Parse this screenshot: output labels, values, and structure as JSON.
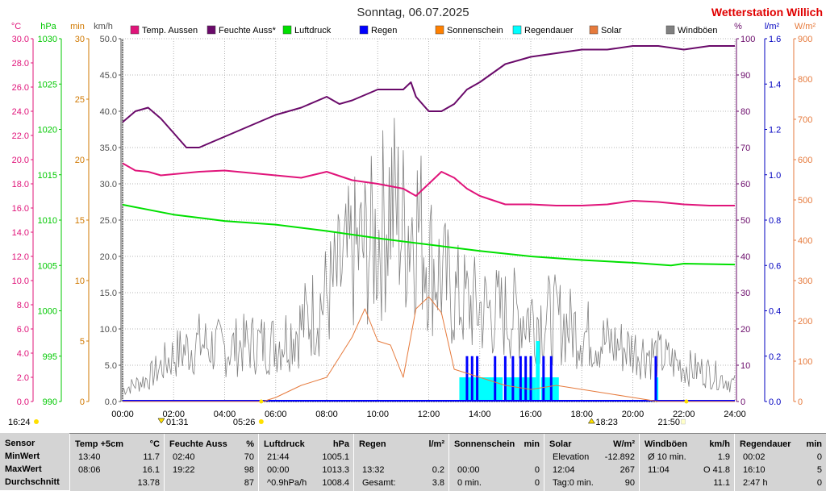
{
  "header": {
    "title": "Sonntag, 06.07.2025",
    "station": "Wetterstation Willich"
  },
  "axes": {
    "left_units": [
      "°C",
      "hPa",
      "min",
      "km/h"
    ],
    "right_units": [
      "%",
      "l/m²",
      "W/m²"
    ],
    "temp_ticks": [
      "30.0",
      "28.0",
      "26.0",
      "24.0",
      "22.0",
      "20.0",
      "18.0",
      "16.0",
      "14.0",
      "12.0",
      "10.0",
      "8.0",
      "6.0",
      "4.0",
      "2.0",
      "0.0"
    ],
    "hpa_ticks": [
      "1030",
      "1025",
      "1020",
      "1015",
      "1010",
      "1005",
      "1000",
      "995",
      "990"
    ],
    "min_ticks": [
      "30",
      "25",
      "20",
      "15",
      "10",
      "5",
      "0"
    ],
    "kmh_ticks": [
      "50.0",
      "45.0",
      "40.0",
      "35.0",
      "30.0",
      "25.0",
      "20.0",
      "15.0",
      "10.0",
      "5.0",
      "0.0"
    ],
    "pct_ticks": [
      "100",
      "90",
      "80",
      "70",
      "60",
      "50",
      "40",
      "30",
      "20",
      "10",
      "0"
    ],
    "rain_ticks": [
      "1.6",
      "1.4",
      "1.2",
      "1.0",
      "0.8",
      "0.6",
      "0.4",
      "0.2",
      "0.0"
    ],
    "solar_ticks": [
      "900",
      "800",
      "700",
      "600",
      "500",
      "400",
      "300",
      "200",
      "100",
      "0"
    ],
    "time_ticks": [
      "00:00",
      "02:00",
      "04:00",
      "06:00",
      "08:00",
      "10:00",
      "12:00",
      "14:00",
      "16:00",
      "18:00",
      "20:00",
      "22:00",
      "24:00"
    ]
  },
  "sun": {
    "moonset_label": "16:24",
    "moonset_time": 0.0,
    "sunrise_nautical": "01:31",
    "sunrise": "05:26",
    "sunset": "18:23",
    "dusk": "21:50"
  },
  "colors": {
    "temp": "#e0147a",
    "humidity": "#6a0a6a",
    "pressure": "#00e000",
    "rain": "#0000ff",
    "sunshine": "#ff8000",
    "rainduration": "#00ffff",
    "solar": "#e67a3c",
    "gust": "#808080"
  },
  "chart_data": {
    "type": "line",
    "title": "Sonntag, 06.07.2025",
    "xlabel": "",
    "x_range": [
      "00:00",
      "24:00"
    ],
    "legend": [
      "Temp. Aussen",
      "Feuchte Auss*",
      "Luftdruck",
      "Regen",
      "Sonnenschein",
      "Regendauer",
      "Solar",
      "Windböen"
    ],
    "series": [
      {
        "name": "Temp. Aussen",
        "unit": "°C",
        "ylim": [
          0,
          30
        ],
        "hours": [
          0,
          0.5,
          1,
          1.5,
          2,
          3,
          4,
          5,
          6,
          7,
          8,
          9,
          10,
          10.5,
          11,
          11.5,
          12,
          12.5,
          13,
          13.5,
          14,
          15,
          16,
          17,
          18,
          19,
          20,
          21,
          22,
          23,
          24
        ],
        "values": [
          19.7,
          19.1,
          19.0,
          18.7,
          18.8,
          19.0,
          19.1,
          18.9,
          18.7,
          18.5,
          19.0,
          18.3,
          18.0,
          17.8,
          17.6,
          17.0,
          18.0,
          19.0,
          18.5,
          17.6,
          17.0,
          16.3,
          16.3,
          16.2,
          16.2,
          16.3,
          16.6,
          16.5,
          16.3,
          16.2,
          16.2
        ]
      },
      {
        "name": "Feuchte Auss*",
        "unit": "%",
        "ylim": [
          0,
          100
        ],
        "hours": [
          0,
          0.5,
          1,
          1.5,
          2,
          2.5,
          3,
          4,
          5,
          6,
          7,
          8,
          8.5,
          9,
          10,
          11,
          11.3,
          11.5,
          12,
          12.5,
          13,
          13.5,
          14,
          15,
          16,
          17,
          18,
          19,
          20,
          21,
          22,
          23,
          24
        ],
        "values": [
          77,
          80,
          81,
          78,
          74,
          70,
          70,
          73,
          76,
          79,
          81,
          84,
          82,
          83,
          86,
          86,
          88,
          84,
          80,
          80,
          82,
          86,
          88,
          93,
          95,
          96,
          97,
          97,
          98,
          98,
          97,
          98,
          98
        ]
      },
      {
        "name": "Luftdruck",
        "unit": "hPa",
        "ylim": [
          990,
          1030
        ],
        "hours": [
          0,
          2,
          4,
          6,
          8,
          10,
          12,
          14,
          16,
          18,
          20,
          21.5,
          22,
          24
        ],
        "values": [
          1011.7,
          1010.6,
          1009.9,
          1009.5,
          1008.8,
          1008.0,
          1007.3,
          1006.6,
          1006.0,
          1005.6,
          1005.3,
          1005.0,
          1005.2,
          1005.1
        ]
      },
      {
        "name": "Solar",
        "unit": "W/m²",
        "ylim": [
          0,
          900
        ],
        "hours": [
          0,
          5.5,
          6,
          7,
          8,
          9,
          9.5,
          10,
          10.5,
          11,
          11.5,
          12,
          12.5,
          13,
          14,
          15,
          16,
          17,
          18,
          19,
          20,
          20.5,
          21,
          22,
          24
        ],
        "values": [
          0,
          0,
          10,
          40,
          60,
          160,
          230,
          150,
          140,
          60,
          230,
          260,
          220,
          80,
          60,
          40,
          30,
          40,
          30,
          20,
          10,
          5,
          0,
          0,
          0
        ]
      },
      {
        "name": "Windböen",
        "unit": "km/h",
        "ylim": [
          0,
          50
        ],
        "hours": [
          0,
          1,
          2,
          3,
          4,
          5,
          6,
          7,
          8,
          9,
          10,
          10.5,
          11,
          11.5,
          12,
          13,
          14,
          15,
          16,
          17,
          18,
          19,
          20,
          21,
          22,
          23,
          24
        ],
        "values": [
          2,
          4,
          8,
          10,
          9,
          10,
          10,
          13,
          18,
          25,
          28,
          35,
          30,
          32,
          25,
          18,
          16,
          15,
          15,
          14,
          12,
          10,
          9,
          8,
          6,
          5,
          3
        ]
      },
      {
        "name": "Regendauer",
        "unit": "min",
        "ylim": [
          0,
          30
        ],
        "segments": [
          [
            13.2,
            14.9,
            2
          ],
          [
            15.0,
            16.2,
            2
          ],
          [
            16.2,
            16.35,
            5
          ],
          [
            16.4,
            17.1,
            2
          ],
          [
            20.9,
            21.0,
            2
          ]
        ]
      },
      {
        "name": "Regen",
        "unit": "l/m²",
        "ylim": [
          0,
          1.6
        ],
        "hours": [
          13.5,
          13.7,
          13.9,
          14.6,
          15.0,
          15.3,
          15.6,
          15.8,
          16.0,
          16.5,
          16.8,
          20.9
        ],
        "values": [
          0.2,
          0.2,
          0.2,
          0.2,
          0.2,
          0.2,
          0.2,
          0.2,
          0.2,
          0.2,
          0.2,
          0.2
        ]
      }
    ]
  },
  "table": {
    "rows": [
      "Sensor",
      "MinWert",
      "MaxWert",
      "Durchschnitt"
    ],
    "columns": [
      {
        "name": "Temp +5cm",
        "unit": "°C",
        "cells": [
          [
            "13:40",
            "11.7"
          ],
          [
            "08:06",
            "16.1"
          ],
          [
            "",
            "13.78"
          ]
        ]
      },
      {
        "name": "Feuchte Auss",
        "unit": "%",
        "cells": [
          [
            "02:40",
            "70"
          ],
          [
            "19:22",
            "98"
          ],
          [
            "",
            "87"
          ]
        ]
      },
      {
        "name": "Luftdruck",
        "unit": "hPa",
        "cells": [
          [
            "21:44",
            "1005.1"
          ],
          [
            "00:00",
            "1013.3"
          ],
          [
            "^0.9hPa/h",
            "1008.4"
          ]
        ]
      },
      {
        "name": "Regen",
        "unit": "l/m²",
        "cells": [
          [
            "",
            ""
          ],
          [
            "13:32",
            "0.2"
          ],
          [
            "Gesamt:",
            "3.8"
          ]
        ]
      },
      {
        "name": "Sonnenschein",
        "unit": "min",
        "cells": [
          [
            "",
            ""
          ],
          [
            "00:00",
            "0"
          ],
          [
            "0 min.",
            "0"
          ]
        ]
      },
      {
        "name": "Solar",
        "unit": "W/m²",
        "cells": [
          [
            "Elevation",
            "-12.892"
          ],
          [
            "12:04",
            "267"
          ],
          [
            "Tag:0 min.",
            "90"
          ]
        ]
      },
      {
        "name": "Windböen",
        "unit": "km/h",
        "cells": [
          [
            "Ø 10 min.",
            "1.9"
          ],
          [
            "11:04",
            "O 41.8"
          ],
          [
            "",
            "11.1"
          ]
        ]
      },
      {
        "name": "Regendauer",
        "unit": "min",
        "cells": [
          [
            "00:02",
            "0"
          ],
          [
            "16:10",
            "5"
          ],
          [
            "2:47 h",
            "0"
          ]
        ]
      }
    ]
  }
}
